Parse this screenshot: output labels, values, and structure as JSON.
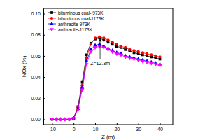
{
  "chart_data": {
    "type": "line",
    "x_label": "Z (m)",
    "y_label": "NOx (%)",
    "x": [
      -10,
      -8,
      -6,
      -4,
      -2,
      0,
      2,
      4,
      6,
      8,
      10,
      12,
      14,
      16,
      18,
      20,
      22,
      24,
      26,
      28,
      30,
      32,
      34,
      36,
      38,
      40
    ],
    "series": [
      {
        "name": "bituminous coal- 973K",
        "color": "#000000",
        "marker": "square",
        "values": [
          0,
          0,
          0,
          0,
          0,
          0.001,
          0.012,
          0.035,
          0.061,
          0.072,
          0.076,
          0.077,
          0.075,
          0.073,
          0.071,
          0.069,
          0.068,
          0.066,
          0.065,
          0.063,
          0.062,
          0.061,
          0.06,
          0.059,
          0.058,
          0.057
        ]
      },
      {
        "name": "bituminous coal-1173K",
        "color": "#ff0000",
        "marker": "circle",
        "values": [
          0,
          0,
          0,
          0,
          0,
          0.001,
          0.011,
          0.032,
          0.058,
          0.071,
          0.077,
          0.078,
          0.077,
          0.075,
          0.073,
          0.071,
          0.069,
          0.068,
          0.066,
          0.065,
          0.064,
          0.063,
          0.062,
          0.061,
          0.06,
          0.059
        ]
      },
      {
        "name": "anthracite-973K",
        "color": "#0000ff",
        "marker": "triangle",
        "values": [
          0,
          0,
          0,
          0,
          0,
          0.001,
          0.01,
          0.03,
          0.055,
          0.066,
          0.07,
          0.071,
          0.069,
          0.067,
          0.065,
          0.063,
          0.062,
          0.06,
          0.059,
          0.058,
          0.057,
          0.056,
          0.055,
          0.054,
          0.053,
          0.052
        ]
      },
      {
        "name": "anthracite-1173K",
        "color": "#ff00ff",
        "marker": "triangle-down",
        "values": [
          0,
          0,
          0,
          0,
          0,
          0.001,
          0.009,
          0.028,
          0.052,
          0.064,
          0.068,
          0.069,
          0.068,
          0.066,
          0.064,
          0.062,
          0.061,
          0.059,
          0.058,
          0.057,
          0.056,
          0.055,
          0.054,
          0.053,
          0.052,
          0.051
        ]
      }
    ],
    "xlim": [
      -14,
      46
    ],
    "xticks": [
      -10,
      0,
      10,
      20,
      30,
      40
    ],
    "ylim": [
      -0.005,
      0.105
    ],
    "yticks": [
      {
        "value": 0,
        "label": "0.00"
      },
      0.02,
      0.04,
      0.06,
      0.08,
      {
        "value": 0.1,
        "label": "0.10"
      }
    ],
    "legend": "upper left",
    "annotations": [
      {
        "text": "Z=12.3m",
        "x": 12.3,
        "y": 0.078
      }
    ]
  }
}
